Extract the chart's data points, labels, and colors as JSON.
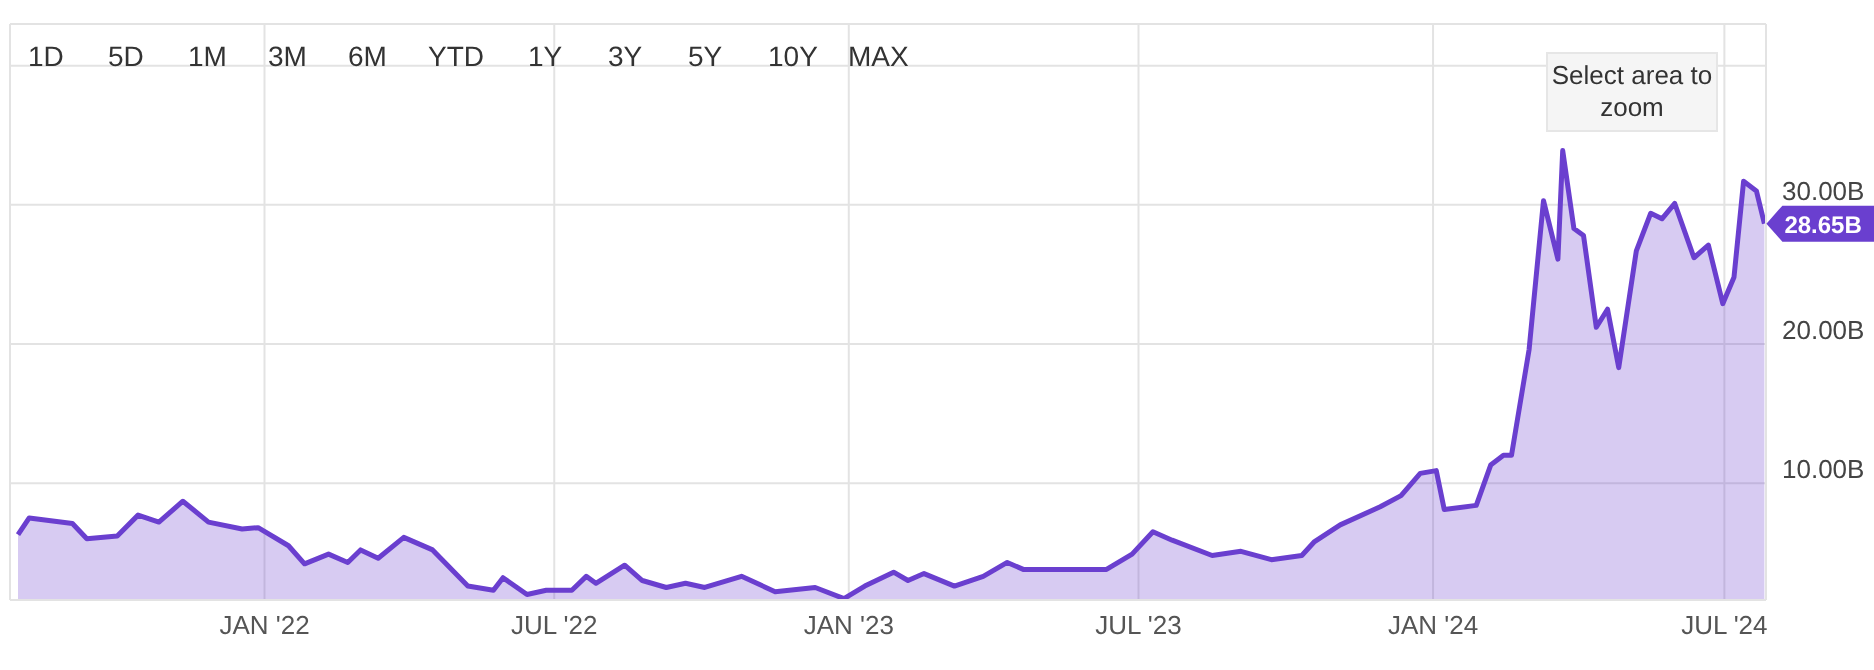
{
  "chart_data": {
    "type": "area",
    "color": "#6a3fcf",
    "x": [
      "2021-07-31",
      "2021-08-07",
      "2021-09-03",
      "2021-09-12",
      "2021-10-01",
      "2021-10-14",
      "2021-10-27",
      "2021-11-11",
      "2021-11-27",
      "2021-12-18",
      "2021-12-28",
      "2022-01-16",
      "2022-01-26",
      "2022-02-10",
      "2022-02-22",
      "2022-03-02",
      "2022-03-13",
      "2022-03-29",
      "2022-04-16",
      "2022-05-08",
      "2022-05-24",
      "2022-05-30",
      "2022-06-14",
      "2022-06-26",
      "2022-07-12",
      "2022-07-21",
      "2022-07-27",
      "2022-08-14",
      "2022-08-25",
      "2022-09-09",
      "2022-09-21",
      "2022-10-03",
      "2022-10-26",
      "2022-11-16",
      "2022-12-11",
      "2022-12-29",
      "2023-01-11",
      "2023-01-29",
      "2023-02-07",
      "2023-02-17",
      "2023-03-08",
      "2023-03-26",
      "2023-04-10",
      "2023-04-20",
      "2023-05-09",
      "2023-06-11",
      "2023-06-27",
      "2023-07-10",
      "2023-07-22",
      "2023-08-16",
      "2023-09-03",
      "2023-09-22",
      "2023-10-11",
      "2023-10-19",
      "2023-11-04",
      "2023-11-29",
      "2023-12-12",
      "2023-12-24",
      "2024-01-03",
      "2024-01-08",
      "2024-01-28",
      "2024-02-06",
      "2024-02-14",
      "2024-02-19",
      "2024-03-01",
      "2024-03-10",
      "2024-03-19",
      "2024-03-22",
      "2024-03-29",
      "2024-04-04",
      "2024-04-12",
      "2024-04-19",
      "2024-04-26",
      "2024-05-07",
      "2024-05-16",
      "2024-05-23",
      "2024-05-31",
      "2024-06-12",
      "2024-06-21",
      "2024-06-30",
      "2024-07-07",
      "2024-07-13",
      "2024-07-21",
      "2024-07-26"
    ],
    "values": [
      6.3,
      7.5,
      7.1,
      6.0,
      6.2,
      7.7,
      7.2,
      8.7,
      7.2,
      6.7,
      6.8,
      5.5,
      4.2,
      4.9,
      4.3,
      5.2,
      4.6,
      6.1,
      5.2,
      2.6,
      2.3,
      3.2,
      2.0,
      2.3,
      2.3,
      3.3,
      2.8,
      4.1,
      3.0,
      2.5,
      2.8,
      2.5,
      3.3,
      2.2,
      2.5,
      1.7,
      2.6,
      3.6,
      3.0,
      3.5,
      2.6,
      3.3,
      4.3,
      3.8,
      3.8,
      3.8,
      4.9,
      6.5,
      5.9,
      4.8,
      5.1,
      4.5,
      4.8,
      5.8,
      7.0,
      8.3,
      9.1,
      10.7,
      10.9,
      8.1,
      8.4,
      11.3,
      12.0,
      12.0,
      19.6,
      30.3,
      26.1,
      33.9,
      28.3,
      27.8,
      21.2,
      22.5,
      18.3,
      26.7,
      29.4,
      29.0,
      30.1,
      26.2,
      27.1,
      22.9,
      24.8,
      31.7,
      31.0,
      28.65
    ],
    "xlim": [
      "2021-07-26",
      "2024-07-27"
    ],
    "xticks": [
      {
        "value": "2022-01-01",
        "label": "JAN '22"
      },
      {
        "value": "2022-07-01",
        "label": "JUL '22"
      },
      {
        "value": "2023-01-01",
        "label": "JAN '23"
      },
      {
        "value": "2023-07-01",
        "label": "JUL '23"
      },
      {
        "value": "2024-01-01",
        "label": "JAN '24"
      },
      {
        "value": "2024-07-01",
        "label": "JUL '24"
      }
    ],
    "ylim": [
      1.6,
      43
    ],
    "yticks": [
      {
        "value": 10,
        "label": "10.00B"
      },
      {
        "value": 20,
        "label": "20.00B"
      },
      {
        "value": 30,
        "label": "30.00B"
      },
      {
        "value": 40,
        "label": null
      }
    ],
    "grid": true,
    "annotations": [
      "1D",
      "5D",
      "1M",
      "3M",
      "6M",
      "YTD",
      "1Y",
      "3Y",
      "5Y",
      "10Y",
      "MAX",
      "Select area to zoom",
      {
        "text": "28.65B",
        "x": "2024-07-26",
        "y": 28.65
      }
    ]
  }
}
